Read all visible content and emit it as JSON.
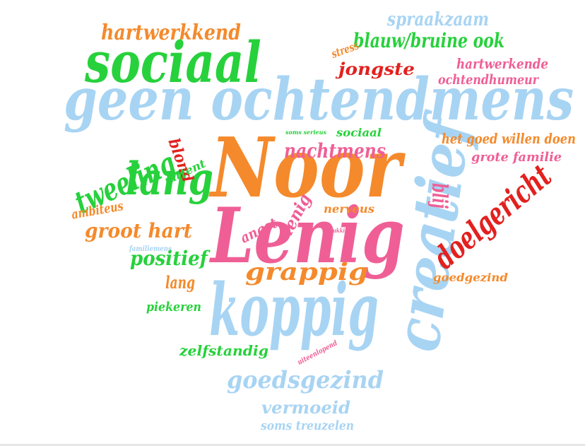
{
  "colors": {
    "blue": "#a8d4f3",
    "green": "#27d13c",
    "orange": "#f48a2c",
    "pink": "#ef5f96",
    "red": "#e2211f",
    "background": "#ffffff"
  },
  "words": [
    {
      "text": "geen ochtendmens",
      "color": "blue"
    },
    {
      "text": "Noor",
      "color": "orange"
    },
    {
      "text": "Lenig",
      "color": "pink"
    },
    {
      "text": "koppig",
      "color": "blue"
    },
    {
      "text": "creatief",
      "color": "blue"
    },
    {
      "text": "sociaal",
      "color": "green"
    },
    {
      "text": "lang",
      "color": "green"
    },
    {
      "text": "tweeling",
      "color": "green"
    },
    {
      "text": "hartwerkkend",
      "color": "orange"
    },
    {
      "text": "spraakzaam",
      "color": "blue"
    },
    {
      "text": "blauw/bruine ook",
      "color": "green"
    },
    {
      "text": "stress",
      "color": "orange"
    },
    {
      "text": "jongste",
      "color": "red"
    },
    {
      "text": "hartwerkende",
      "color": "pink"
    },
    {
      "text": "ochtendhumeur",
      "color": "pink"
    },
    {
      "text": "soms serieus",
      "color": "green"
    },
    {
      "text": "sociaal",
      "color": "green"
    },
    {
      "text": "het goed willen doen",
      "color": "orange"
    },
    {
      "text": "blond",
      "color": "red"
    },
    {
      "text": "nachtmens",
      "color": "pink"
    },
    {
      "text": "grote familie",
      "color": "pink"
    },
    {
      "text": "attent",
      "color": "green"
    },
    {
      "text": "blij",
      "color": "pink"
    },
    {
      "text": "doelgericht",
      "color": "red"
    },
    {
      "text": "ambiteus",
      "color": "orange"
    },
    {
      "text": "lenig",
      "color": "pink"
    },
    {
      "text": "nerveus",
      "color": "orange"
    },
    {
      "text": "groot hart",
      "color": "orange"
    },
    {
      "text": "angst",
      "color": "pink"
    },
    {
      "text": "gelukkig",
      "color": "pink"
    },
    {
      "text": "familiemens",
      "color": "blue"
    },
    {
      "text": "positief",
      "color": "green"
    },
    {
      "text": "grappig",
      "color": "orange"
    },
    {
      "text": "goedgezind",
      "color": "orange"
    },
    {
      "text": "lang",
      "color": "orange"
    },
    {
      "text": "piekeren",
      "color": "green"
    },
    {
      "text": "zelfstandig",
      "color": "green"
    },
    {
      "text": "uiteenlopend",
      "color": "pink"
    },
    {
      "text": "goedsgezind",
      "color": "blue"
    },
    {
      "text": "vermoeid",
      "color": "blue"
    },
    {
      "text": "soms treuzelen",
      "color": "blue"
    }
  ]
}
